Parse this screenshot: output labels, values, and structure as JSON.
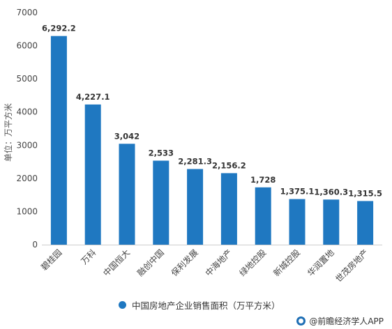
{
  "chart_data": {
    "type": "bar",
    "categories": [
      "碧桂园",
      "万科",
      "中国恒大",
      "融创中国",
      "保利发展",
      "中海地产",
      "绿地控股",
      "新城控股",
      "华润置地",
      "世茂房地产"
    ],
    "values": [
      6292.2,
      4227.1,
      3042,
      2533,
      2281.3,
      2156.2,
      1728,
      1375.1,
      1360.3,
      1315.5
    ],
    "value_labels": [
      "6,292.2",
      "4,227.1",
      "3,042",
      "2,533",
      "2,281.3",
      "2,156.2",
      "1,728",
      "1,375.1",
      "1,360.3",
      "1,315.5"
    ],
    "yticks": [
      "0",
      "1000",
      "2000",
      "3000",
      "4000",
      "5000",
      "6000",
      "7000"
    ],
    "ylim": [
      0,
      7000
    ],
    "ylabel": "单位：万平方米",
    "grid": false,
    "legend_position": "bottom",
    "series": [
      {
        "name": "中国房地产企业销售面积（万平方米）"
      }
    ],
    "bar_color": "#1f78c1"
  },
  "source": {
    "text": "@前瞻经济学人APP"
  }
}
